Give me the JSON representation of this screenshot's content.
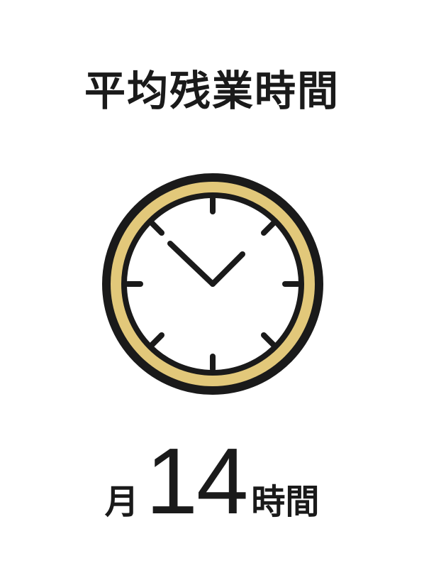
{
  "title": "平均残業時間",
  "icon": "clock-icon",
  "stat": {
    "prefix": "月",
    "value": "14",
    "suffix": "時間"
  },
  "colors": {
    "ring": "#e2c87a",
    "stroke": "#1a1a1a",
    "background": "#ffffff"
  }
}
